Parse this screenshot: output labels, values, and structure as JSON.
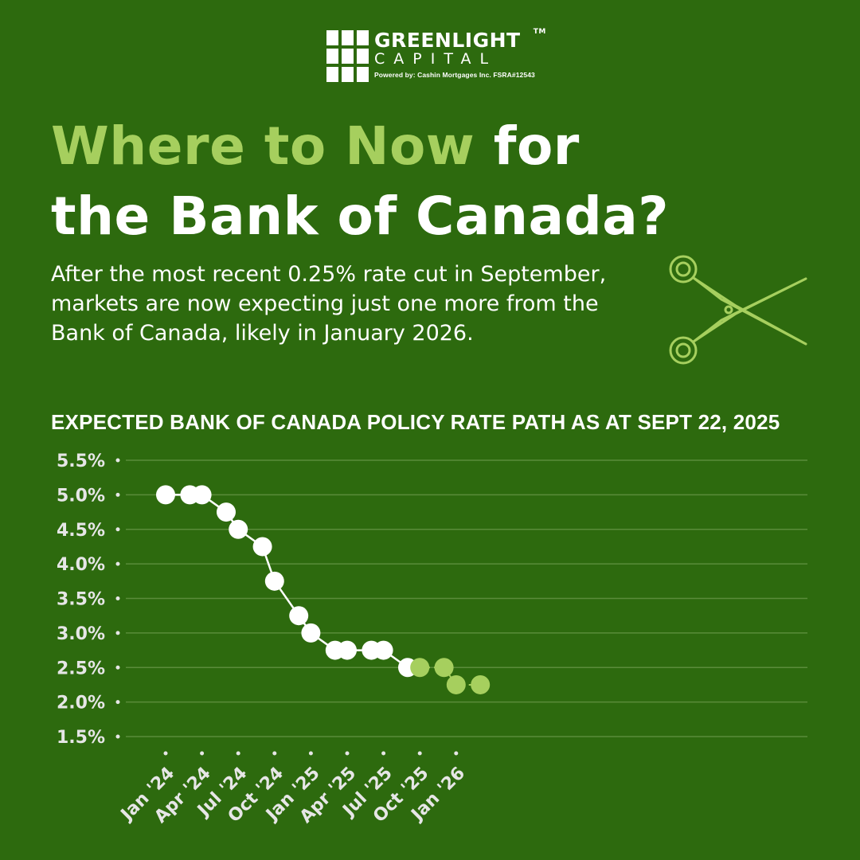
{
  "brand": {
    "name": "GREENLIGHT",
    "trademark": "TM",
    "subtitle": "CAPITAL",
    "powered_by": "Powered by:  Cashin Mortgages Inc.  FSRA#12543"
  },
  "headline": {
    "highlight": "Where to Now",
    "rest_line1": " for",
    "line2": "the Bank of Canada?"
  },
  "intro_text": "After the most recent 0.25% rate cut in September, markets are now expecting just one more from the Bank of Canada, likely in January 2026.",
  "icons": {
    "scissors": "scissors-icon",
    "logo": "logo-grid-icon"
  },
  "colors": {
    "background": "#2d6a0e",
    "accent_green": "#a6cf5e",
    "actual": "#ffffff",
    "gridline": "#5a8c3a",
    "tick_text": "#e6e6e6"
  },
  "chart_data": {
    "type": "line",
    "title": "EXPECTED BANK OF CANADA POLICY RATE PATH AS AT SEPT 22, 2025",
    "xlabel": "",
    "ylabel": "",
    "ylim": [
      1.5,
      5.5
    ],
    "y_ticks": [
      "5.5%",
      "5.0%",
      "4.5%",
      "4.0%",
      "3.5%",
      "3.0%",
      "2.5%",
      "2.0%",
      "1.5%"
    ],
    "x_tick_labels": [
      "Jan '24",
      "Apr '24",
      "Jul '24",
      "Oct '24",
      "Jan '25",
      "Apr '25",
      "Jul '25",
      "Oct '25",
      "Jan '26"
    ],
    "grid": true,
    "legend": "none",
    "series": [
      {
        "role": "actual",
        "color": "#ffffff",
        "style": "solid",
        "x": [
          "2024-01",
          "2024-03",
          "2024-04",
          "2024-06",
          "2024-07",
          "2024-09",
          "2024-10",
          "2024-12",
          "2025-01",
          "2025-03",
          "2025-04",
          "2025-06",
          "2025-07",
          "2025-09"
        ],
        "values": [
          5.0,
          5.0,
          5.0,
          4.75,
          4.5,
          4.25,
          3.75,
          3.25,
          3.0,
          2.75,
          2.75,
          2.75,
          2.75,
          2.5
        ]
      },
      {
        "role": "expected",
        "color": "#a6cf5e",
        "style": "dashed",
        "x": [
          "2025-09",
          "2025-10",
          "2025-12",
          "2026-01",
          "2026-03"
        ],
        "values": [
          2.5,
          2.5,
          2.5,
          2.25,
          2.25
        ]
      }
    ]
  }
}
